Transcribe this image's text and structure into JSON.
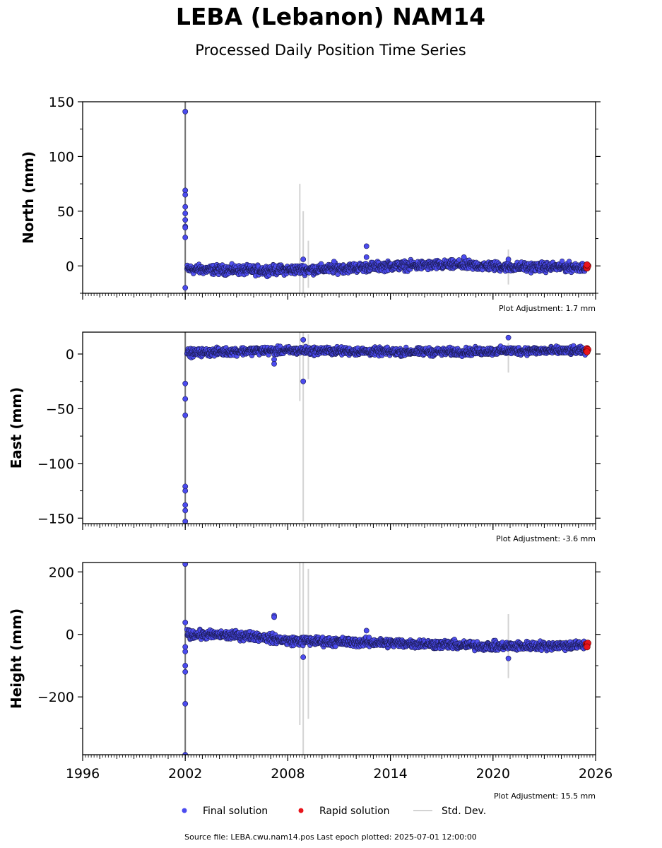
{
  "title": "LEBA (Lebanon) NAM14",
  "subtitle": "Processed Daily Position Time Series",
  "source_note": "Source file: LEBA.cwu.nam14.pos  Last epoch plotted: 2025-07-01 12:00:00",
  "legend": {
    "final": "Final solution",
    "rapid": "Rapid solution",
    "std": "Std. Dev."
  },
  "colors": {
    "final": "#4b4bef",
    "rapid": "#e8141b",
    "std": "#d3d3d3",
    "vline": "#707070"
  },
  "chart_data": [
    {
      "type": "scatter",
      "ylabel": "North (mm)",
      "xlim": [
        1996,
        2026
      ],
      "ylim": [
        -25,
        150
      ],
      "yticks": [
        0,
        50,
        100,
        150
      ],
      "xticks": [
        1996,
        2002,
        2008,
        2014,
        2020,
        2026
      ],
      "show_xtick_labels": false,
      "adjustment": "Plot Adjustment: 1.7 mm",
      "vline_x": 2002.0,
      "outliers": [
        [
          2002.0,
          141
        ],
        [
          2002.0,
          69
        ],
        [
          2002.0,
          65
        ],
        [
          2002.0,
          54
        ],
        [
          2002.0,
          48
        ],
        [
          2002.0,
          42
        ],
        [
          2002.0,
          36
        ],
        [
          2002.0,
          35
        ],
        [
          2002.0,
          26
        ],
        [
          2002.0,
          -20
        ],
        [
          2008.9,
          6
        ],
        [
          2010.7,
          4
        ],
        [
          2012.6,
          18
        ],
        [
          2012.6,
          8
        ],
        [
          2018.3,
          8
        ],
        [
          2020.9,
          6
        ]
      ],
      "trend": [
        [
          2002.1,
          -3
        ],
        [
          2006,
          -4
        ],
        [
          2010,
          -3
        ],
        [
          2014,
          0
        ],
        [
          2018,
          1
        ],
        [
          2021,
          -1
        ],
        [
          2025.4,
          -1
        ]
      ],
      "noise": 3,
      "std_bars": [
        [
          2008.7,
          -25,
          75
        ],
        [
          2008.9,
          -25,
          50
        ],
        [
          2009.2,
          -20,
          23
        ],
        [
          2020.9,
          -17,
          15
        ]
      ],
      "rapid": [
        [
          2025.45,
          -1
        ],
        [
          2025.5,
          -2
        ],
        [
          2025.55,
          0
        ],
        [
          2025.5,
          1
        ]
      ]
    },
    {
      "type": "scatter",
      "ylabel": "East (mm)",
      "xlim": [
        1996,
        2026
      ],
      "ylim": [
        -155,
        20
      ],
      "yticks": [
        -150,
        -100,
        -50,
        0
      ],
      "xticks": [
        1996,
        2002,
        2008,
        2014,
        2020,
        2026
      ],
      "show_xtick_labels": false,
      "adjustment": "Plot Adjustment: -3.6 mm",
      "vline_x": 2002.0,
      "outliers": [
        [
          2002.0,
          -27
        ],
        [
          2002.0,
          -41
        ],
        [
          2002.0,
          -56
        ],
        [
          2002.0,
          -121
        ],
        [
          2002.0,
          -125
        ],
        [
          2002.0,
          -138
        ],
        [
          2002.0,
          -143
        ],
        [
          2002.0,
          -153
        ],
        [
          2007.2,
          -5
        ],
        [
          2007.2,
          -9
        ],
        [
          2008.9,
          13
        ],
        [
          2008.9,
          -25
        ],
        [
          2020.9,
          15
        ]
      ],
      "trend": [
        [
          2002.1,
          1
        ],
        [
          2006,
          3
        ],
        [
          2010,
          3
        ],
        [
          2014,
          2
        ],
        [
          2018,
          2
        ],
        [
          2021,
          3
        ],
        [
          2025.4,
          3
        ]
      ],
      "noise": 2.5,
      "std_bars": [
        [
          2008.7,
          -43,
          20
        ],
        [
          2008.9,
          -153,
          20
        ],
        [
          2009.2,
          -23,
          18
        ],
        [
          2020.9,
          -17,
          10
        ]
      ],
      "rapid": [
        [
          2025.45,
          3
        ],
        [
          2025.5,
          5
        ],
        [
          2025.55,
          4
        ],
        [
          2025.5,
          2
        ]
      ]
    },
    {
      "type": "scatter",
      "ylabel": "Height (mm)",
      "xlim": [
        1996,
        2026
      ],
      "ylim": [
        -385,
        230
      ],
      "yticks": [
        -200,
        0,
        200
      ],
      "xticks": [
        1996,
        2002,
        2008,
        2014,
        2020,
        2026
      ],
      "show_xtick_labels": true,
      "adjustment": "Plot Adjustment: 15.5 mm",
      "vline_x": 2002.0,
      "outliers": [
        [
          2002.0,
          225
        ],
        [
          2002.0,
          38
        ],
        [
          2002.0,
          -40
        ],
        [
          2002.0,
          -55
        ],
        [
          2002.0,
          -100
        ],
        [
          2002.0,
          -120
        ],
        [
          2002.0,
          -222
        ],
        [
          2002.0,
          -385
        ],
        [
          2007.2,
          60
        ],
        [
          2007.2,
          55
        ],
        [
          2008.9,
          -73
        ],
        [
          2012.6,
          12
        ],
        [
          2020.9,
          -77
        ]
      ],
      "trend": [
        [
          2002.1,
          0
        ],
        [
          2006,
          -5
        ],
        [
          2008,
          -20
        ],
        [
          2012,
          -25
        ],
        [
          2016,
          -30
        ],
        [
          2020,
          -38
        ],
        [
          2025.4,
          -35
        ]
      ],
      "noise": 10,
      "std_bars": [
        [
          2008.7,
          -290,
          230
        ],
        [
          2008.9,
          -385,
          230
        ],
        [
          2009.2,
          -270,
          210
        ],
        [
          2020.9,
          -140,
          65
        ]
      ],
      "rapid": [
        [
          2025.45,
          -30
        ],
        [
          2025.5,
          -35
        ],
        [
          2025.55,
          -28
        ],
        [
          2025.5,
          -40
        ]
      ]
    }
  ]
}
